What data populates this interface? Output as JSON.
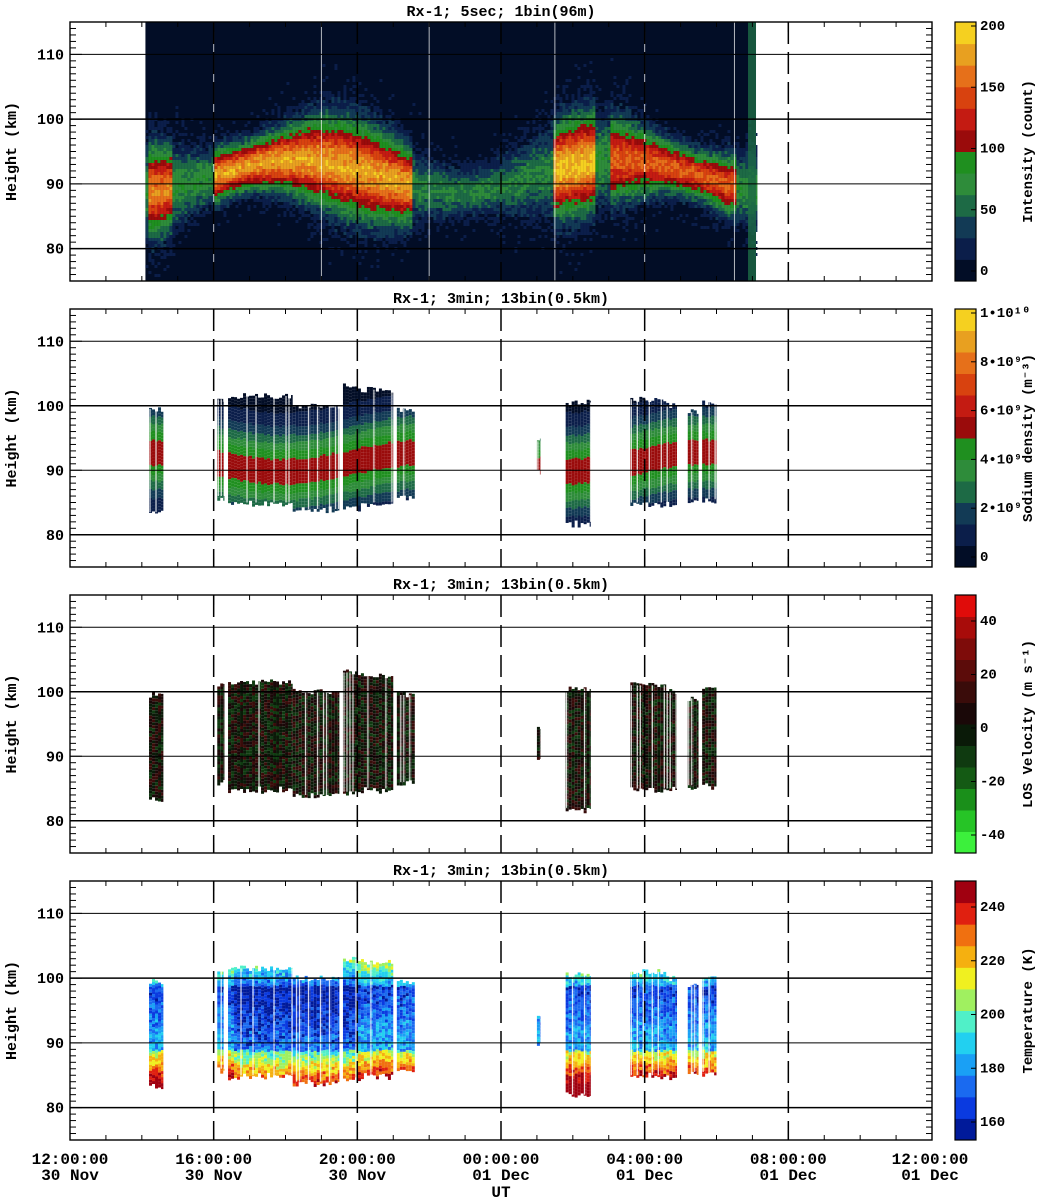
{
  "figure": {
    "x_axis_label": "UT",
    "x_range_hours": [
      0,
      24
    ],
    "x_tick_hours": [
      0,
      4,
      8,
      12,
      16,
      20,
      24
    ],
    "x_tick_labels": [
      {
        "time": "12:00:00",
        "date": "30 Nov"
      },
      {
        "time": "16:00:00",
        "date": "30 Nov"
      },
      {
        "time": "20:00:00",
        "date": "30 Nov"
      },
      {
        "time": "00:00:00",
        "date": "01 Dec"
      },
      {
        "time": "04:00:00",
        "date": "01 Dec"
      },
      {
        "time": "08:00:00",
        "date": "01 Dec"
      },
      {
        "time": "12:00:00",
        "date": "01 Dec"
      }
    ],
    "dashed_vertical_hours": [
      4,
      8,
      12,
      16,
      20
    ]
  },
  "chart_data": [
    {
      "type": "heatmap",
      "title": "Rx-1;  5sec; 1bin(96m)",
      "ylabel": "Height (km)",
      "ylim": [
        75,
        115
      ],
      "y_ticks": [
        80,
        90,
        100,
        110
      ],
      "grid": "horizontal lines at 80, 90, 100, 110 km",
      "colorbar": {
        "label": "Intensity (count)",
        "ticks": [
          "0",
          "50",
          "100",
          "150",
          "200"
        ],
        "colors": [
          "#020d26",
          "#0b1e4a",
          "#123a55",
          "#1d6a45",
          "#2e8c3a",
          "#1f8f1f",
          "#9a0b0b",
          "#c41b12",
          "#d8420f",
          "#e6701a",
          "#e8a020",
          "#f5d020"
        ]
      },
      "coverage_hours": [
        [
          2.1,
          19.1
        ]
      ],
      "layer_peak_km": 92,
      "layer_extent_km": [
        83,
        102
      ]
    },
    {
      "type": "heatmap",
      "title": "Rx-1; 3min; 13bin(0.5km)",
      "ylabel": "Height (km)",
      "ylim": [
        75,
        115
      ],
      "y_ticks": [
        80,
        90,
        100,
        110
      ],
      "colorbar": {
        "label": "Sodium density (m⁻³)",
        "ticks": [
          "0",
          "2•10⁹",
          "4•10⁹",
          "6•10⁹",
          "8•10⁹",
          "1•10¹⁰"
        ],
        "colors": [
          "#020d26",
          "#0b1e4a",
          "#123a55",
          "#1d6a45",
          "#2e8c3a",
          "#1f8f1f",
          "#9a0b0b",
          "#c41b12",
          "#d8420f",
          "#e6701a",
          "#e8a020",
          "#f5d020"
        ]
      },
      "data_blocks": [
        {
          "start": 2.2,
          "end": 2.6,
          "bottom": 83.5,
          "top": 99.5
        },
        {
          "start": 4.1,
          "end": 4.3,
          "bottom": 86,
          "top": 101
        },
        {
          "start": 4.4,
          "end": 6.2,
          "bottom": 85,
          "top": 101.5
        },
        {
          "start": 6.2,
          "end": 7.5,
          "bottom": 84,
          "top": 100
        },
        {
          "start": 7.6,
          "end": 8.1,
          "bottom": 84.5,
          "top": 103
        },
        {
          "start": 8.1,
          "end": 9.0,
          "bottom": 85,
          "top": 102.5
        },
        {
          "start": 9.1,
          "end": 9.6,
          "bottom": 86,
          "top": 99.5
        },
        {
          "start": 13.0,
          "end": 13.1,
          "bottom": 90,
          "top": 94.5
        },
        {
          "start": 13.8,
          "end": 14.5,
          "bottom": 82,
          "top": 100.5
        },
        {
          "start": 15.6,
          "end": 16.6,
          "bottom": 85,
          "top": 101
        },
        {
          "start": 16.6,
          "end": 16.9,
          "bottom": 85,
          "top": 100
        },
        {
          "start": 17.2,
          "end": 17.5,
          "bottom": 85.5,
          "top": 99
        },
        {
          "start": 17.6,
          "end": 18.0,
          "bottom": 85.5,
          "top": 100.5
        }
      ]
    },
    {
      "type": "heatmap",
      "title": "Rx-1; 3min; 13bin(0.5km)",
      "ylabel": "Height (km)",
      "ylim": [
        75,
        115
      ],
      "y_ticks": [
        80,
        90,
        100,
        110
      ],
      "colorbar": {
        "label": "LOS Velocity (m s⁻¹)",
        "ticks": [
          "-40",
          "-20",
          "0",
          "20",
          "40"
        ],
        "colors": [
          "#3cf03c",
          "#26c426",
          "#1a8f1a",
          "#145a14",
          "#0f3a10",
          "#0a1a08",
          "#1a0808",
          "#3a0c0a",
          "#5c0c0a",
          "#7e0c0a",
          "#a80c0a",
          "#e00c0a"
        ]
      },
      "data_blocks": [
        {
          "start": 2.2,
          "end": 2.6,
          "bottom": 83.5,
          "top": 99.5
        },
        {
          "start": 4.1,
          "end": 4.3,
          "bottom": 86,
          "top": 101
        },
        {
          "start": 4.4,
          "end": 6.2,
          "bottom": 85,
          "top": 101.5
        },
        {
          "start": 6.2,
          "end": 7.5,
          "bottom": 84,
          "top": 100
        },
        {
          "start": 7.6,
          "end": 8.1,
          "bottom": 84.5,
          "top": 103
        },
        {
          "start": 8.1,
          "end": 9.0,
          "bottom": 85,
          "top": 102.5
        },
        {
          "start": 9.1,
          "end": 9.6,
          "bottom": 86,
          "top": 99.5
        },
        {
          "start": 13.0,
          "end": 13.1,
          "bottom": 90,
          "top": 94.5
        },
        {
          "start": 13.8,
          "end": 14.5,
          "bottom": 82,
          "top": 100.5
        },
        {
          "start": 15.6,
          "end": 16.6,
          "bottom": 85,
          "top": 101
        },
        {
          "start": 16.6,
          "end": 16.9,
          "bottom": 85,
          "top": 100
        },
        {
          "start": 17.2,
          "end": 17.5,
          "bottom": 85.5,
          "top": 99
        },
        {
          "start": 17.6,
          "end": 18.0,
          "bottom": 85.5,
          "top": 100.5
        }
      ]
    },
    {
      "type": "heatmap",
      "title": "Rx-1; 3min; 13bin(0.5km)",
      "ylabel": "Height (km)",
      "ylim": [
        75,
        115
      ],
      "y_ticks": [
        80,
        90,
        100,
        110
      ],
      "colorbar": {
        "label": "Temperature (K)",
        "ticks": [
          "160",
          "180",
          "200",
          "220",
          "240"
        ],
        "colors": [
          "#001a9a",
          "#0a3ae0",
          "#1a6af0",
          "#1aa0f5",
          "#22d0f0",
          "#50f0c8",
          "#a0f060",
          "#f0f020",
          "#f5b010",
          "#f07010",
          "#e02010",
          "#a00010"
        ]
      },
      "data_blocks": [
        {
          "start": 2.2,
          "end": 2.6,
          "bottom": 83.5,
          "top": 99.5
        },
        {
          "start": 4.1,
          "end": 4.3,
          "bottom": 86,
          "top": 101
        },
        {
          "start": 4.4,
          "end": 6.2,
          "bottom": 85,
          "top": 101.5
        },
        {
          "start": 6.2,
          "end": 7.5,
          "bottom": 84,
          "top": 100
        },
        {
          "start": 7.6,
          "end": 8.1,
          "bottom": 84.5,
          "top": 103
        },
        {
          "start": 8.1,
          "end": 9.0,
          "bottom": 85,
          "top": 102.5
        },
        {
          "start": 9.1,
          "end": 9.6,
          "bottom": 86,
          "top": 99.5
        },
        {
          "start": 13.0,
          "end": 13.1,
          "bottom": 90,
          "top": 94.5
        },
        {
          "start": 13.8,
          "end": 14.5,
          "bottom": 82,
          "top": 100.5
        },
        {
          "start": 15.6,
          "end": 16.6,
          "bottom": 85,
          "top": 101
        },
        {
          "start": 16.6,
          "end": 16.9,
          "bottom": 85,
          "top": 100
        },
        {
          "start": 17.2,
          "end": 17.5,
          "bottom": 85.5,
          "top": 99
        },
        {
          "start": 17.6,
          "end": 18.0,
          "bottom": 85.5,
          "top": 100.5
        }
      ]
    }
  ]
}
